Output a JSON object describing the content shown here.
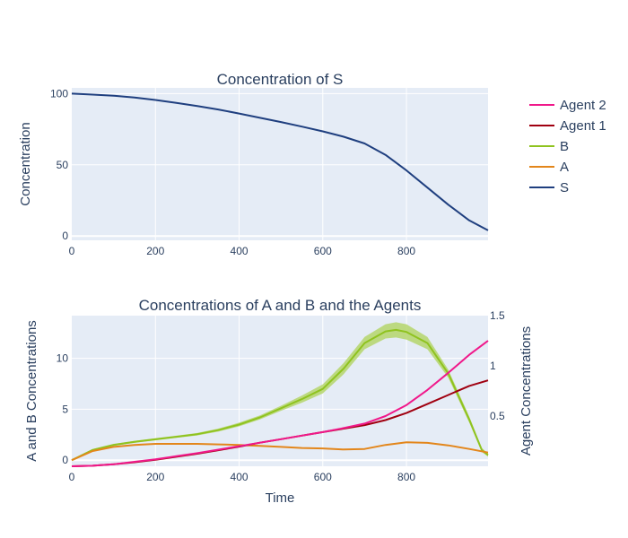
{
  "colors": {
    "S": "#1f3f7f",
    "A": "#e3861b",
    "B": "#8fc31f",
    "B_band": "#b5d66b",
    "agent1": "#a00010",
    "agent2": "#f0188a",
    "plot_bg": "#e5ecf6",
    "grid": "#ffffff",
    "text": "#2a3f5f"
  },
  "legend": {
    "placement": "right",
    "items": [
      {
        "label": "Agent 2",
        "color": "#f0188a"
      },
      {
        "label": "Agent 1",
        "color": "#a00010"
      },
      {
        "label": "B",
        "color": "#8fc31f"
      },
      {
        "label": "A",
        "color": "#e3861b"
      },
      {
        "label": "S",
        "color": "#1f3f7f"
      }
    ]
  },
  "chart_data": [
    {
      "type": "line",
      "title": "Concentration of S",
      "xlabel": "",
      "ylabel": "Concentration",
      "xlim": [
        0,
        995
      ],
      "ylim": [
        -3,
        104
      ],
      "xticks": [
        0,
        200,
        400,
        600,
        800
      ],
      "yticks": [
        0,
        50,
        100
      ],
      "grid": true,
      "series": [
        {
          "name": "S",
          "color": "#1f3f7f",
          "x": [
            0,
            50,
            100,
            150,
            200,
            250,
            300,
            350,
            400,
            450,
            500,
            550,
            600,
            650,
            700,
            750,
            800,
            850,
            900,
            950,
            995
          ],
          "y": [
            100,
            99.3,
            98.5,
            97.2,
            95.5,
            93.5,
            91.3,
            88.8,
            86,
            83,
            80,
            76.8,
            73.5,
            69.7,
            65,
            57,
            46,
            34,
            22,
            11,
            4
          ]
        }
      ]
    },
    {
      "type": "line",
      "title": "Concentrations of A and B and the Agents",
      "xlabel": "Time",
      "ylabel": "A and B Concentrations",
      "y2label": "Agent Concentrations",
      "xlim": [
        0,
        995
      ],
      "ylim": [
        -0.6,
        14.2
      ],
      "y2lim": [
        0,
        1.5
      ],
      "xticks": [
        0,
        200,
        400,
        600,
        800
      ],
      "yticks": [
        0,
        5,
        10
      ],
      "y2ticks": [
        0.5,
        1,
        1.5
      ],
      "grid": true,
      "series": [
        {
          "name": "B",
          "axis": "left",
          "color": "#8fc31f",
          "band": true,
          "x": [
            0,
            50,
            100,
            150,
            200,
            250,
            300,
            350,
            400,
            450,
            500,
            550,
            600,
            650,
            700,
            750,
            775,
            800,
            850,
            900,
            950,
            980,
            995
          ],
          "y": [
            0,
            1,
            1.5,
            1.8,
            2.05,
            2.3,
            2.55,
            2.95,
            3.5,
            4.2,
            5.1,
            6,
            7,
            9,
            11.5,
            12.65,
            12.8,
            12.6,
            11.5,
            8.5,
            4,
            1,
            0.5
          ],
          "band_width": [
            0,
            0.1,
            0.1,
            0.1,
            0.1,
            0.1,
            0.12,
            0.15,
            0.18,
            0.2,
            0.25,
            0.35,
            0.45,
            0.55,
            0.6,
            0.7,
            0.75,
            0.75,
            0.6,
            0.4,
            0.3,
            0.2,
            0.15
          ]
        },
        {
          "name": "A",
          "axis": "left",
          "color": "#e3861b",
          "x": [
            0,
            50,
            100,
            150,
            200,
            250,
            300,
            350,
            400,
            450,
            500,
            550,
            600,
            650,
            700,
            750,
            800,
            850,
            900,
            950,
            995
          ],
          "y": [
            0,
            0.9,
            1.3,
            1.5,
            1.6,
            1.6,
            1.6,
            1.55,
            1.5,
            1.4,
            1.3,
            1.2,
            1.15,
            1.05,
            1.1,
            1.5,
            1.75,
            1.7,
            1.45,
            1.1,
            0.75
          ]
        },
        {
          "name": "Agent 1",
          "axis": "right",
          "color": "#a00010",
          "x": [
            0,
            50,
            100,
            150,
            200,
            250,
            300,
            350,
            400,
            450,
            500,
            550,
            600,
            650,
            700,
            750,
            800,
            850,
            900,
            950,
            995
          ],
          "y": [
            0,
            0.005,
            0.02,
            0.04,
            0.065,
            0.095,
            0.125,
            0.16,
            0.195,
            0.235,
            0.27,
            0.305,
            0.34,
            0.375,
            0.41,
            0.46,
            0.53,
            0.62,
            0.71,
            0.8,
            0.855
          ]
        },
        {
          "name": "Agent 2",
          "axis": "right",
          "color": "#f0188a",
          "x": [
            0,
            50,
            100,
            150,
            200,
            250,
            300,
            350,
            400,
            450,
            500,
            550,
            600,
            650,
            700,
            750,
            800,
            850,
            900,
            950,
            995
          ],
          "y": [
            0,
            0.005,
            0.02,
            0.045,
            0.07,
            0.1,
            0.13,
            0.165,
            0.2,
            0.235,
            0.27,
            0.305,
            0.34,
            0.38,
            0.425,
            0.5,
            0.61,
            0.76,
            0.93,
            1.11,
            1.25
          ]
        }
      ]
    }
  ]
}
